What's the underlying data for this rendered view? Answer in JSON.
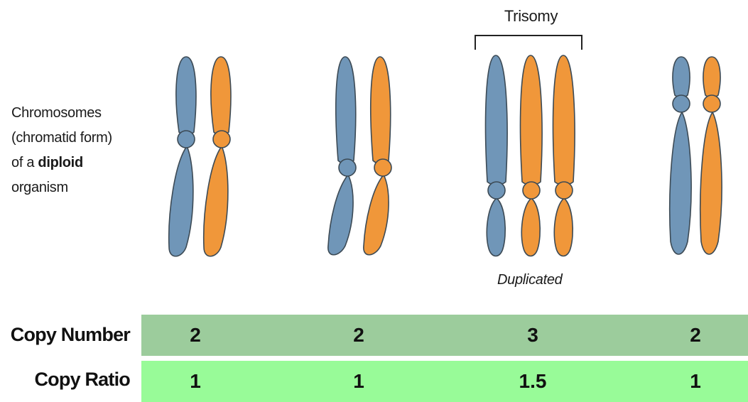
{
  "side_label": {
    "line1": "Chromosomes",
    "line2": "(chromatid form)",
    "line3_prefix": "of a ",
    "line3_bold": "diploid",
    "line4": "organism"
  },
  "trisomy_label": "Trisomy",
  "duplicated_label": "Duplicated",
  "table": {
    "copy_number_label": "Copy Number",
    "copy_ratio_label": "Copy Ratio",
    "copy_number": [
      "2",
      "2",
      "3",
      "2"
    ],
    "copy_ratio": [
      "1",
      "1",
      "1.5",
      "1"
    ]
  },
  "colors": {
    "blue": "#7096b8",
    "orange": "#f0973a",
    "outline": "#3c4a55",
    "copy_number_band": "#9ccc9c",
    "copy_ratio_band": "#98fb98"
  }
}
